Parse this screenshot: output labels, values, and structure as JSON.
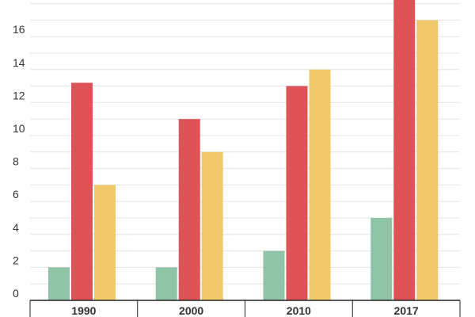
{
  "chart_data": {
    "type": "bar",
    "categories": [
      "1990",
      "2000",
      "2010",
      "2017"
    ],
    "series": [
      {
        "values": [
          2,
          2,
          3,
          5
        ],
        "color": "#8fc4a6"
      },
      {
        "values": [
          13.2,
          11,
          13,
          18.4
        ],
        "color": "#dd5358"
      },
      {
        "values": [
          7,
          9,
          14,
          17
        ],
        "color": "#efc96a"
      }
    ],
    "yticks": [
      "0",
      "2",
      "4",
      "6",
      "8",
      "10",
      "12",
      "14",
      "16"
    ],
    "ylim": [
      0,
      18
    ],
    "grid": true,
    "legend": "none",
    "title": "",
    "xlabel": "",
    "ylabel": ""
  }
}
